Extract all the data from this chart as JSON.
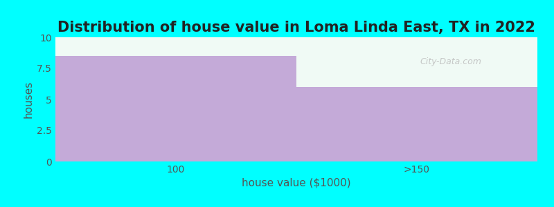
{
  "title": "Distribution of house value in Loma Linda East, TX in 2022",
  "xlabel": "house value ($1000)",
  "ylabel": "houses",
  "categories": [
    "100",
    ">150"
  ],
  "values": [
    8.5,
    6.0
  ],
  "bar_color": "#c4aad8",
  "background_color": "#00ffff",
  "plot_bg_color": "#f0faf5",
  "ylim": [
    0,
    10
  ],
  "yticks": [
    0,
    2.5,
    5,
    7.5,
    10
  ],
  "title_fontsize": 15,
  "axis_label_fontsize": 11,
  "tick_fontsize": 10,
  "bar_width": 1.0
}
